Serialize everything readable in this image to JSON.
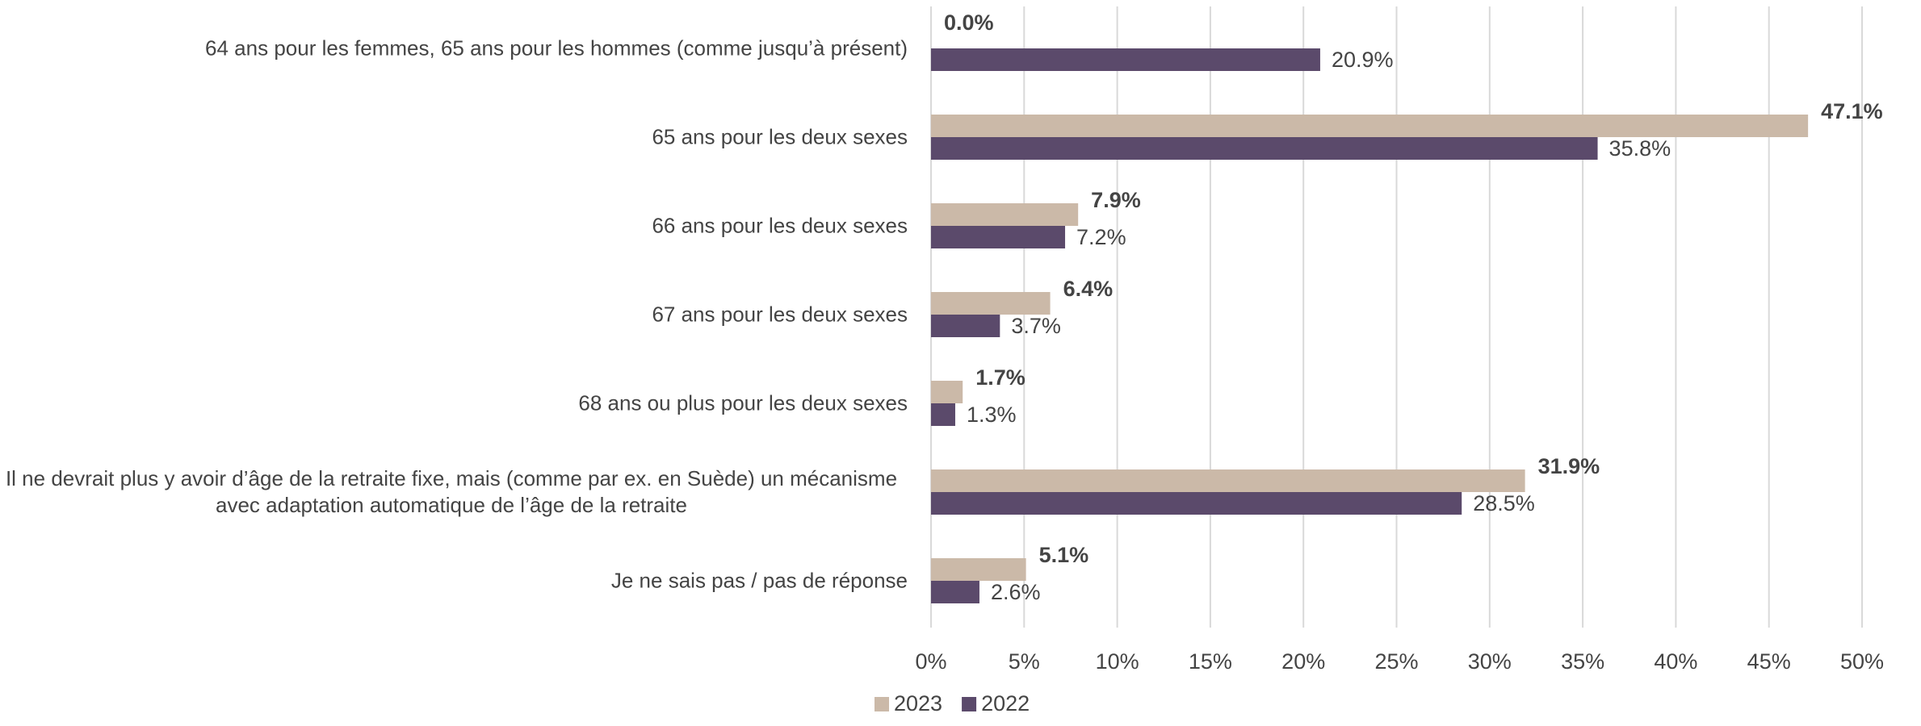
{
  "chart_data": {
    "type": "hbar",
    "categories": [
      "64 ans pour les femmes, 65 ans pour les hommes (comme jusqu’à présent)",
      "65 ans pour les deux sexes",
      "66 ans pour les deux sexes",
      "67 ans pour les deux sexes",
      "68 ans ou plus pour les deux sexes",
      "Il ne devrait plus y avoir d’âge de la retraite fixe, mais (comme par ex. en Suède) un mécanisme avec adaptation automatique de l’âge de la retraite",
      "Je ne sais pas / pas de réponse"
    ],
    "series": [
      {
        "name": "2023",
        "color": "#cbb9a8",
        "values": [
          0.0,
          47.1,
          7.9,
          6.4,
          1.7,
          31.9,
          5.1
        ],
        "value_labels": [
          "0.0%",
          "47.1%",
          "7.9%",
          "6.4%",
          "1.7%",
          "31.9%",
          "5.1%"
        ]
      },
      {
        "name": "2022",
        "color": "#5b4a6b",
        "values": [
          20.9,
          35.8,
          7.2,
          3.7,
          1.3,
          28.5,
          2.6
        ],
        "value_labels": [
          "20.9%",
          "35.8%",
          "7.2%",
          "3.7%",
          "1.3%",
          "28.5%",
          "2.6%"
        ]
      }
    ],
    "xlim": [
      0,
      50
    ],
    "xticks": [
      {
        "value": 0,
        "label": "0%"
      },
      {
        "value": 5,
        "label": "5%"
      },
      {
        "value": 10,
        "label": "10%"
      },
      {
        "value": 15,
        "label": "15%"
      },
      {
        "value": 20,
        "label": "20%"
      },
      {
        "value": 25,
        "label": "25%"
      },
      {
        "value": 30,
        "label": "30%"
      },
      {
        "value": 35,
        "label": "35%"
      },
      {
        "value": 40,
        "label": "40%"
      },
      {
        "value": 45,
        "label": "45%"
      },
      {
        "value": 50,
        "label": "50%"
      }
    ],
    "grid": true,
    "legend": "bottom"
  }
}
